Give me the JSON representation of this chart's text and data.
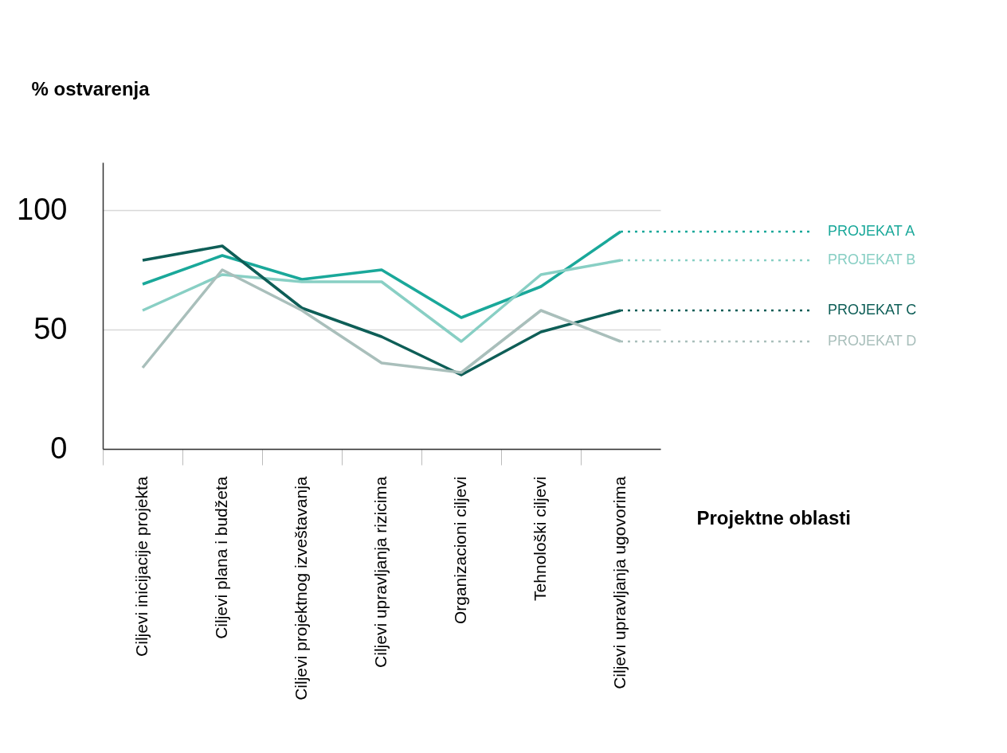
{
  "chart_data": {
    "type": "line",
    "ylabel": "% ostvarenja",
    "xlabel": "Projektne oblasti",
    "categories": [
      "Ciljevi inicijacije projekta",
      "Ciljevi plana i budžeta",
      "Ciljevi projektnog izveštavanja",
      "Ciljevi upravljanja rizicima",
      "Organizacioni ciljevi",
      "Tehnološki ciljevi",
      "Ciljevi upravljanja ugovorima"
    ],
    "series": [
      {
        "name": "PROJEKAT A",
        "color": "#1aa89a",
        "values": [
          69,
          81,
          71,
          75,
          55,
          68,
          91
        ]
      },
      {
        "name": "PROJEKAT B",
        "color": "#88cfc4",
        "values": [
          58,
          73,
          70,
          70,
          45,
          73,
          79
        ]
      },
      {
        "name": "PROJEKAT C",
        "color": "#0e5e57",
        "values": [
          79,
          85,
          59,
          47,
          31,
          49,
          58
        ]
      },
      {
        "name": "PROJEKAT D",
        "color": "#a9bfbb",
        "values": [
          34,
          75,
          58,
          36,
          32,
          58,
          45
        ]
      }
    ],
    "ylim": [
      0,
      120
    ],
    "yticks": [
      0,
      50,
      100
    ],
    "grid": "y",
    "legend": "right",
    "marker": "none",
    "line_style": "solid"
  }
}
